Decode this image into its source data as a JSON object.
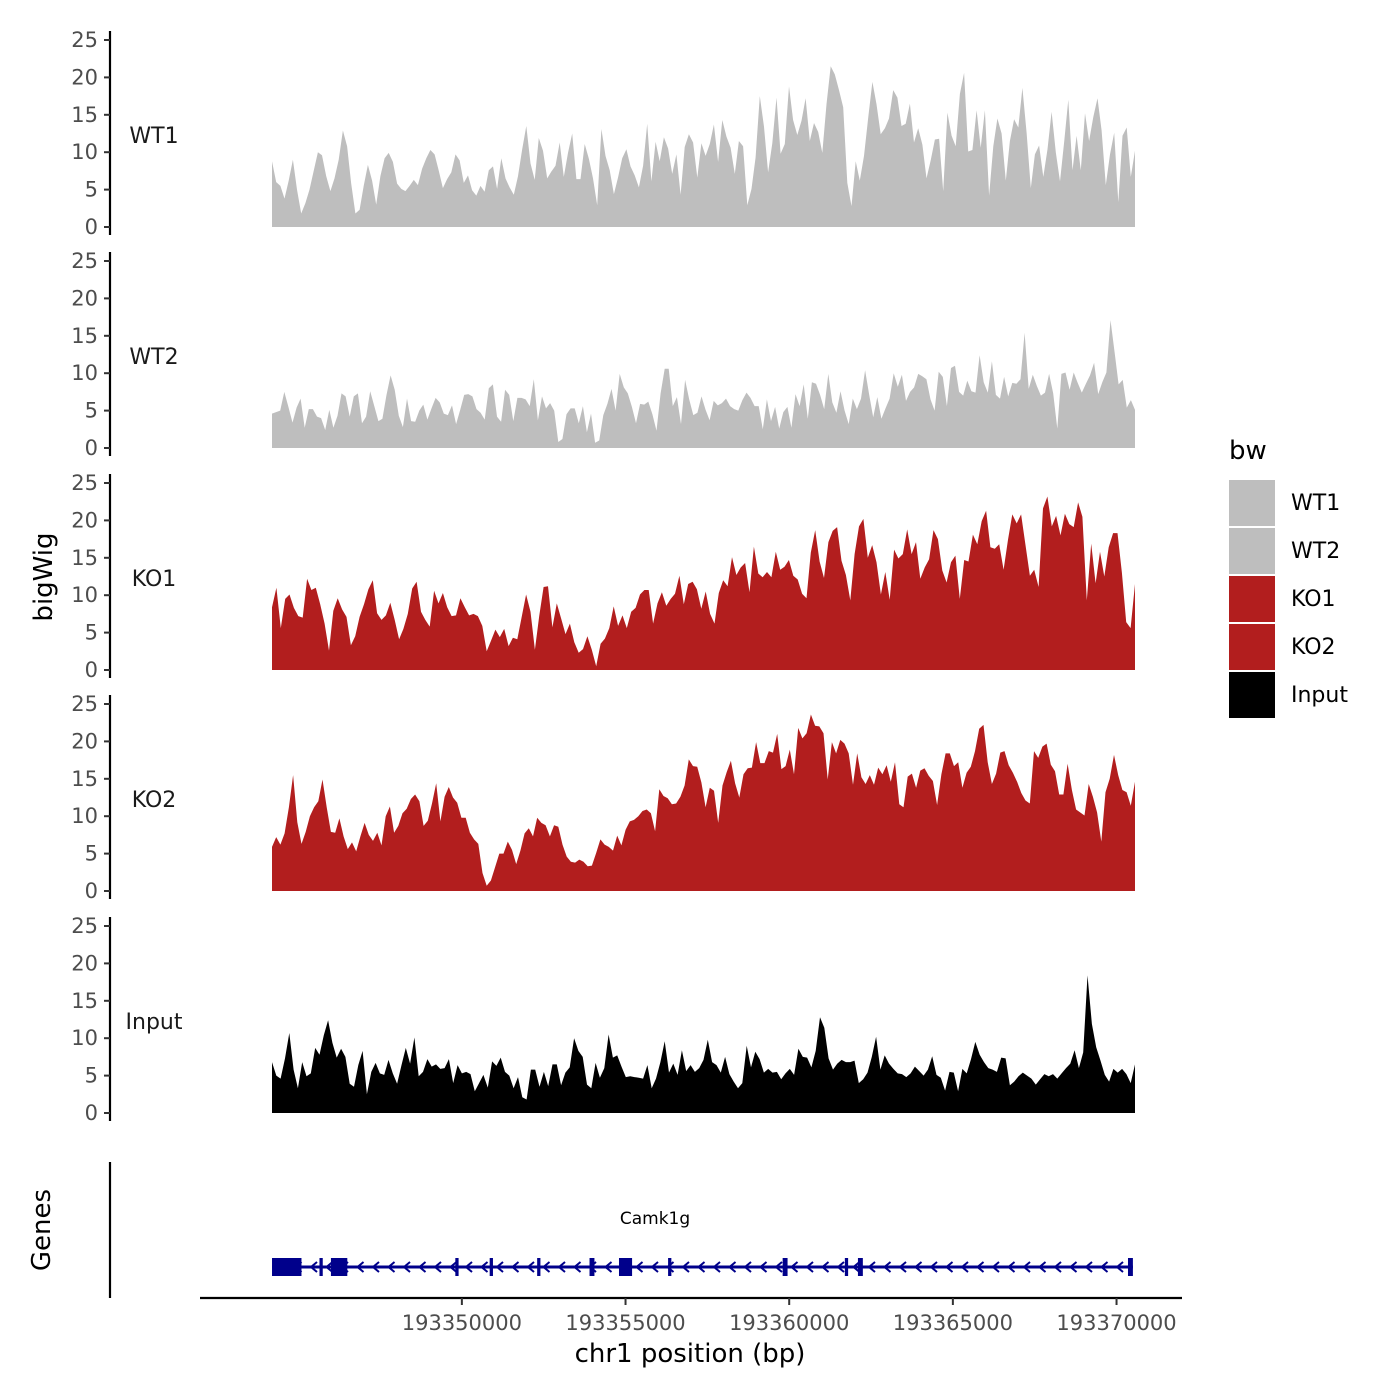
{
  "chart_data": {
    "type": "area",
    "subtype": "genome-browser-coverage-tracks",
    "ylabel": "bigWig",
    "xlabel": "chr1 position (bp)",
    "genes_label": "Genes",
    "ylim": [
      0,
      25
    ],
    "y_ticks": [
      "0",
      "5",
      "10",
      "15",
      "20",
      "25"
    ],
    "xlim": [
      193342000,
      193372000
    ],
    "x_ticks": [
      {
        "value": 193350000,
        "label": "193350000"
      },
      {
        "value": 193355000,
        "label": "193355000"
      },
      {
        "value": 193360000,
        "label": "193360000"
      },
      {
        "value": 193365000,
        "label": "193365000"
      },
      {
        "value": 193370000,
        "label": "193370000"
      }
    ],
    "legend": {
      "title": "bw",
      "position": "right",
      "entries": [
        {
          "label": "WT1",
          "color": "#bebebe"
        },
        {
          "label": "WT2",
          "color": "#bebebe"
        },
        {
          "label": "KO1",
          "color": "#b21e1e"
        },
        {
          "label": "KO2",
          "color": "#b21e1e"
        },
        {
          "label": "Input",
          "color": "#000000"
        }
      ]
    },
    "region": {
      "start": 193344200,
      "end": 193372000
    },
    "tracks": [
      {
        "name": "WT1",
        "color": "#bebebe",
        "values": [
          8.8,
          6,
          5.5,
          3.8,
          6.2,
          9,
          5,
          1.8,
          3.2,
          5,
          7.5,
          10,
          9.6,
          6.8,
          4.8,
          6.5,
          9,
          12.9,
          10.8,
          5.8,
          1.8,
          2.3,
          5.5,
          8.3,
          6.2,
          3,
          6.8,
          9.2,
          9.9,
          8.7,
          5.8,
          5.1,
          4.8,
          5.5,
          6.3,
          5.6,
          7.8,
          9.2,
          10.3,
          9.7,
          7.5,
          5.2,
          6.4,
          7.3,
          9.7,
          8.9,
          5.9,
          6.9,
          4.9,
          4.2,
          5.5,
          4.7,
          7.6,
          8.1,
          5.1,
          9.2,
          6.5,
          5.3,
          4.3,
          6.8,
          10.4,
          13.5,
          8.5,
          6.3,
          11.9,
          10.2,
          6.5,
          7.4,
          8.2,
          11.3,
          6.7,
          9.9,
          12.5,
          6.4,
          6.4,
          11.1,
          9.1,
          6.5,
          2.9,
          13.1,
          9.5,
          7.6,
          4.4,
          6.6,
          9.2,
          10.4,
          8.1,
          6.9,
          5.3,
          8.2,
          13.8,
          6.1,
          11.4,
          8.8,
          12,
          10.5,
          7.1,
          9.7,
          4.3,
          10.7,
          12.4,
          11.3,
          6.6,
          11.2,
          9.5,
          11.1,
          13.7,
          8.7,
          14.3,
          12.1,
          10.6,
          7.1,
          11.5,
          10.8,
          2.9,
          5.1,
          9.3,
          17.5,
          13.4,
          7.3,
          11.2,
          17.3,
          9.8,
          11.1,
          18.8,
          14.3,
          12.3,
          14.2,
          17.2,
          11.5,
          13.9,
          12.7,
          9.9,
          16.4,
          21.5,
          20.4,
          18.3,
          16,
          5.9,
          2.8,
          8.8,
          6.2,
          9.5,
          14.6,
          19.4,
          16.4,
          12.4,
          13.2,
          14.5,
          18.3,
          17.3,
          13.5,
          13.8,
          16.5,
          11.3,
          13.2,
          11,
          6.5,
          8.9,
          11.7,
          11.8,
          4.8,
          15.3,
          12.2,
          10.8,
          17.8,
          20.6,
          10.1,
          10.3,
          15.6,
          10.6,
          15.6,
          4.2,
          10.8,
          14.5,
          12.5,
          6.2,
          11.5,
          14.4,
          13.3,
          18.6,
          12.6,
          5.2,
          9.7,
          10.9,
          6.7,
          10.4,
          15.4,
          10,
          6.1,
          11.3,
          17,
          7.6,
          12.2,
          7.6,
          15.2,
          11.5,
          14.7,
          17.2,
          12.9,
          5.6,
          9.7,
          12.6,
          3.3,
          12.2,
          13.3,
          6.7,
          10.2
        ]
      },
      {
        "name": "WT2",
        "color": "#bebebe",
        "values": [
          4.6,
          4.8,
          5,
          7.5,
          5.5,
          3.4,
          5.4,
          6.6,
          2.7,
          5.2,
          5.2,
          4.2,
          4,
          2.4,
          5.1,
          2.7,
          4.3,
          7.3,
          6.9,
          4.2,
          6.9,
          7.3,
          3.3,
          4.2,
          7.6,
          5.6,
          3.6,
          3.9,
          7.1,
          9.7,
          7.8,
          4.3,
          2.8,
          6.6,
          3.6,
          3.5,
          5,
          5.8,
          3.8,
          5.3,
          6.7,
          6.1,
          4.6,
          4.4,
          5.7,
          3.2,
          5.1,
          7.1,
          7.2,
          6.9,
          5.2,
          4.7,
          3.8,
          8,
          8.5,
          4.2,
          3.5,
          7.8,
          7.1,
          3.6,
          6.7,
          6.7,
          6.5,
          5.6,
          9.2,
          3.7,
          6.9,
          5.3,
          6,
          5,
          0.8,
          1.2,
          4.5,
          5.3,
          5.3,
          3.3,
          5.6,
          2.1,
          4.6,
          0.7,
          1,
          4.4,
          5.9,
          7.9,
          5,
          9.9,
          8.1,
          7.3,
          5.5,
          3.3,
          5.9,
          5.8,
          6.2,
          4.5,
          2.3,
          7.3,
          10.6,
          10.6,
          5.6,
          6.8,
          3.2,
          9.1,
          6.5,
          4.4,
          4.7,
          6.9,
          5.1,
          3.7,
          6.3,
          5.7,
          6,
          6.6,
          5.6,
          5.2,
          5,
          6.4,
          7.4,
          6.7,
          5.6,
          5.6,
          2.5,
          6.5,
          3.6,
          5.5,
          2.6,
          4.8,
          5.5,
          2.7,
          7.2,
          5.6,
          8.5,
          3.9,
          8.8,
          8.6,
          7.1,
          5.2,
          9.9,
          6.1,
          4.7,
          7.6,
          5,
          3.2,
          6.6,
          5.2,
          6.6,
          10.4,
          7.1,
          4.1,
          6.8,
          3.9,
          5.3,
          6.6,
          10,
          8.2,
          9.8,
          6.3,
          7.5,
          8.1,
          9.9,
          9.6,
          9.2,
          6.5,
          5,
          10.2,
          9.5,
          5.6,
          10.7,
          11,
          7.5,
          7,
          9,
          7.6,
          7.4,
          12.4,
          8.8,
          7.4,
          11.6,
          7.1,
          6.6,
          9.5,
          6.9,
          8.7,
          8.6,
          9.2,
          15.4,
          7.9,
          9.8,
          8.3,
          7,
          7.4,
          9.9,
          7.3,
          2.6,
          9.9,
          10.1,
          7.8,
          10.1,
          8.7,
          7.4,
          8.6,
          9.7,
          11.4,
          7.2,
          8.8,
          10.1,
          17.1,
          12.8,
          8.5,
          9.1,
          5.4,
          6.4,
          5.1
        ]
      },
      {
        "name": "KO1",
        "color": "#b21e1e",
        "values": [
          8.4,
          11,
          5.6,
          9.5,
          10.1,
          8.3,
          7.2,
          7,
          12.2,
          10.7,
          11,
          8.8,
          6.2,
          2.6,
          7.9,
          9.6,
          8.1,
          7.1,
          3.3,
          4.5,
          7.1,
          8.8,
          10.8,
          12,
          7.6,
          6.7,
          7.3,
          9,
          6.7,
          4.1,
          5.5,
          7.5,
          10.9,
          11.8,
          7.8,
          6.7,
          5.8,
          10.6,
          8.9,
          10.3,
          8.4,
          7.2,
          7.3,
          9.6,
          8.4,
          7.3,
          7.5,
          7.2,
          5.9,
          2.5,
          3.9,
          5.4,
          4.4,
          5.5,
          3.2,
          4.3,
          4.1,
          7.1,
          10.1,
          7.8,
          2.7,
          7.2,
          11.1,
          11.2,
          5.7,
          8.9,
          6.9,
          4.8,
          6.2,
          3.7,
          2.3,
          2.8,
          4.5,
          2.7,
          0.5,
          3.5,
          4.2,
          5.6,
          8.5,
          5.9,
          7.3,
          5.6,
          7.8,
          8.3,
          10.1,
          10.7,
          10.7,
          6.2,
          8.9,
          10.4,
          8.6,
          9.5,
          10.2,
          12.6,
          8.8,
          11.5,
          11.8,
          10.8,
          8.2,
          10.5,
          7.5,
          6.2,
          10.3,
          12,
          11.2,
          15.1,
          12.7,
          13.7,
          14.3,
          10.4,
          16.5,
          12.9,
          12.4,
          13.1,
          12.4,
          15.8,
          13.4,
          13.8,
          14.7,
          12.6,
          12.1,
          10.2,
          9.6,
          15.7,
          18.7,
          14.5,
          12.3,
          17.1,
          18.6,
          19.1,
          14.6,
          12.7,
          9.3,
          15.5,
          19.2,
          20.2,
          15,
          16.7,
          14.4,
          10.1,
          13.1,
          9.4,
          16.1,
          14.9,
          15.5,
          18.8,
          15.5,
          17.1,
          12.2,
          13.7,
          14.8,
          18.7,
          17.5,
          13.3,
          11.7,
          14.4,
          15.3,
          9.5,
          14.7,
          14.5,
          18.1,
          16.8,
          19.9,
          21.3,
          16.4,
          16.2,
          16.8,
          13.4,
          17.4,
          20.8,
          19.6,
          20.8,
          16.7,
          12.6,
          13.4,
          11.1,
          21.6,
          23.2,
          19.2,
          20.6,
          18,
          20.9,
          19.5,
          19.1,
          22.4,
          20.5,
          9.3,
          16.9,
          11.6,
          15.8,
          12.5,
          16.4,
          18.3,
          18.3,
          13,
          6.4,
          5.6,
          11.5
        ]
      },
      {
        "name": "KO2",
        "color": "#b21e1e",
        "values": [
          5.9,
          7.2,
          6.2,
          7.7,
          11.2,
          15.5,
          9.2,
          6.3,
          7.9,
          10,
          11.2,
          12,
          14.9,
          11.2,
          7.9,
          7.8,
          9.7,
          7.3,
          5.6,
          6.5,
          5.3,
          7.3,
          9.1,
          7.5,
          6.7,
          7.8,
          6.1,
          10,
          11.3,
          7.8,
          8.7,
          10.4,
          11,
          12.3,
          12.9,
          12,
          8.7,
          9.4,
          11.7,
          14.4,
          9.3,
          12.6,
          13.9,
          12.5,
          11.8,
          9.8,
          9.8,
          7.8,
          6.9,
          6.3,
          2.4,
          0.7,
          1.4,
          3.2,
          5,
          5,
          6.6,
          5.5,
          3.6,
          5.4,
          7.7,
          8.4,
          7.3,
          9.8,
          9.1,
          8.8,
          7.3,
          8.8,
          8.6,
          6.2,
          4.6,
          3.9,
          3.8,
          4.2,
          3.9,
          3.3,
          3.4,
          5.1,
          6.9,
          6.2,
          5.9,
          5.4,
          7.4,
          6.1,
          8.2,
          9.3,
          9.5,
          10,
          10.7,
          10.9,
          10.4,
          8,
          13.6,
          12.7,
          12.4,
          11.6,
          11.7,
          12.6,
          14.1,
          17.6,
          16.7,
          16.6,
          14.5,
          11.2,
          13.8,
          13.4,
          9.1,
          14.1,
          15.9,
          17.4,
          14.4,
          12.5,
          15.6,
          16.4,
          16.5,
          19.9,
          17.1,
          17.1,
          18.7,
          18.5,
          21,
          16.3,
          16.7,
          18.9,
          15.6,
          21.8,
          20.4,
          21.1,
          23.6,
          22.1,
          22,
          21.1,
          14.9,
          19.9,
          18.4,
          20.2,
          19.7,
          18.4,
          14.2,
          18.4,
          15.2,
          14.3,
          15.5,
          14.2,
          16.5,
          15.6,
          16.8,
          14.6,
          17.2,
          11.6,
          11.2,
          15.3,
          15.7,
          13.8,
          16.1,
          16.4,
          15.4,
          14.7,
          11.5,
          15.6,
          18.4,
          18.4,
          16.7,
          17.2,
          13.8,
          15.8,
          16.6,
          18.7,
          21.7,
          22.2,
          17.2,
          14.3,
          15.7,
          18.5,
          18.7,
          16.8,
          15.8,
          14.6,
          13.1,
          12.1,
          11.7,
          18.7,
          17.8,
          19.3,
          19.7,
          16.9,
          16,
          12.9,
          12.9,
          17,
          13.5,
          10.9,
          10.5,
          10.1,
          14.3,
          12.6,
          10.5,
          6.6,
          13.2,
          15,
          18.2,
          15.5,
          13.5,
          13.2,
          11.4,
          14.6
        ]
      },
      {
        "name": "Input",
        "color": "#000000",
        "values": [
          6.8,
          5,
          4.6,
          7.3,
          10.7,
          5.8,
          3.3,
          6.8,
          4.9,
          5.3,
          8.7,
          7.8,
          10.4,
          12.4,
          9.4,
          7.4,
          8.6,
          7.5,
          3.9,
          3.5,
          6.4,
          8.3,
          2.5,
          5.5,
          6.7,
          5.3,
          5.1,
          7.1,
          5.3,
          3.9,
          6.4,
          8.7,
          6.6,
          10.1,
          4.9,
          5.5,
          7.2,
          6.2,
          6.5,
          5.9,
          6,
          7.2,
          4,
          6.4,
          5.3,
          5.5,
          5.2,
          2.9,
          4,
          5.1,
          3.4,
          6.9,
          6.3,
          7.4,
          5.5,
          5,
          3.3,
          4.8,
          2.1,
          1.8,
          5.8,
          5.8,
          3.5,
          5.5,
          3.6,
          6.5,
          6.5,
          3.7,
          5.4,
          6.1,
          10,
          8.3,
          7.5,
          3.8,
          3.3,
          6.7,
          4.7,
          6,
          10.5,
          7.4,
          7.7,
          6.2,
          4.8,
          4.9,
          4.8,
          4.7,
          4.6,
          6.4,
          3.3,
          4.6,
          6.8,
          9.6,
          5.4,
          6.6,
          5.1,
          8.4,
          5.6,
          6.4,
          5.5,
          6,
          7.1,
          9.8,
          6.8,
          6.4,
          5.4,
          7.5,
          5.2,
          4.2,
          3.3,
          4,
          9,
          6.1,
          8.2,
          7.2,
          5.4,
          5.9,
          5.4,
          5.5,
          4.5,
          5.3,
          5.9,
          5.1,
          8.6,
          7.5,
          7.4,
          6.1,
          8.3,
          12.8,
          11.4,
          7.3,
          5.8,
          6.6,
          7.1,
          6.8,
          6.8,
          7,
          4,
          4.5,
          5.4,
          7.5,
          10.2,
          5.8,
          7.7,
          6.6,
          5.9,
          5.3,
          5.2,
          4.8,
          5.3,
          6.2,
          5.6,
          5,
          5.8,
          7.6,
          5.1,
          4.7,
          3,
          5.5,
          5.4,
          2.9,
          5.9,
          5.3,
          7.2,
          9.5,
          7.8,
          6.8,
          6,
          5.8,
          5.5,
          7.4,
          7.3,
          3.7,
          4.2,
          4.9,
          5.4,
          5,
          4.6,
          3.8,
          4.5,
          5.2,
          4.9,
          5.2,
          4.6,
          5.3,
          6,
          6.6,
          8.4,
          6,
          8.1,
          18.4,
          11.9,
          8.8,
          7,
          5.1,
          4.2,
          5.9,
          5.4,
          5.9,
          5.2,
          4,
          6.5
        ]
      }
    ],
    "gene": {
      "name": "Camk1g",
      "strand": "-",
      "start": 193344200,
      "end": 193370500,
      "color": "#00008b",
      "exons": [
        [
          193344200,
          193345100
        ],
        [
          193345650,
          193345750
        ],
        [
          193346000,
          193346500
        ],
        [
          193349800,
          193349900
        ],
        [
          193350850,
          193350950
        ],
        [
          193352300,
          193352400
        ],
        [
          193353900,
          193354050
        ],
        [
          193354800,
          193355200
        ],
        [
          193356300,
          193356400
        ],
        [
          193359800,
          193359950
        ],
        [
          193361700,
          193361800
        ],
        [
          193362100,
          193362250
        ],
        [
          193370350,
          193370500
        ]
      ]
    }
  }
}
